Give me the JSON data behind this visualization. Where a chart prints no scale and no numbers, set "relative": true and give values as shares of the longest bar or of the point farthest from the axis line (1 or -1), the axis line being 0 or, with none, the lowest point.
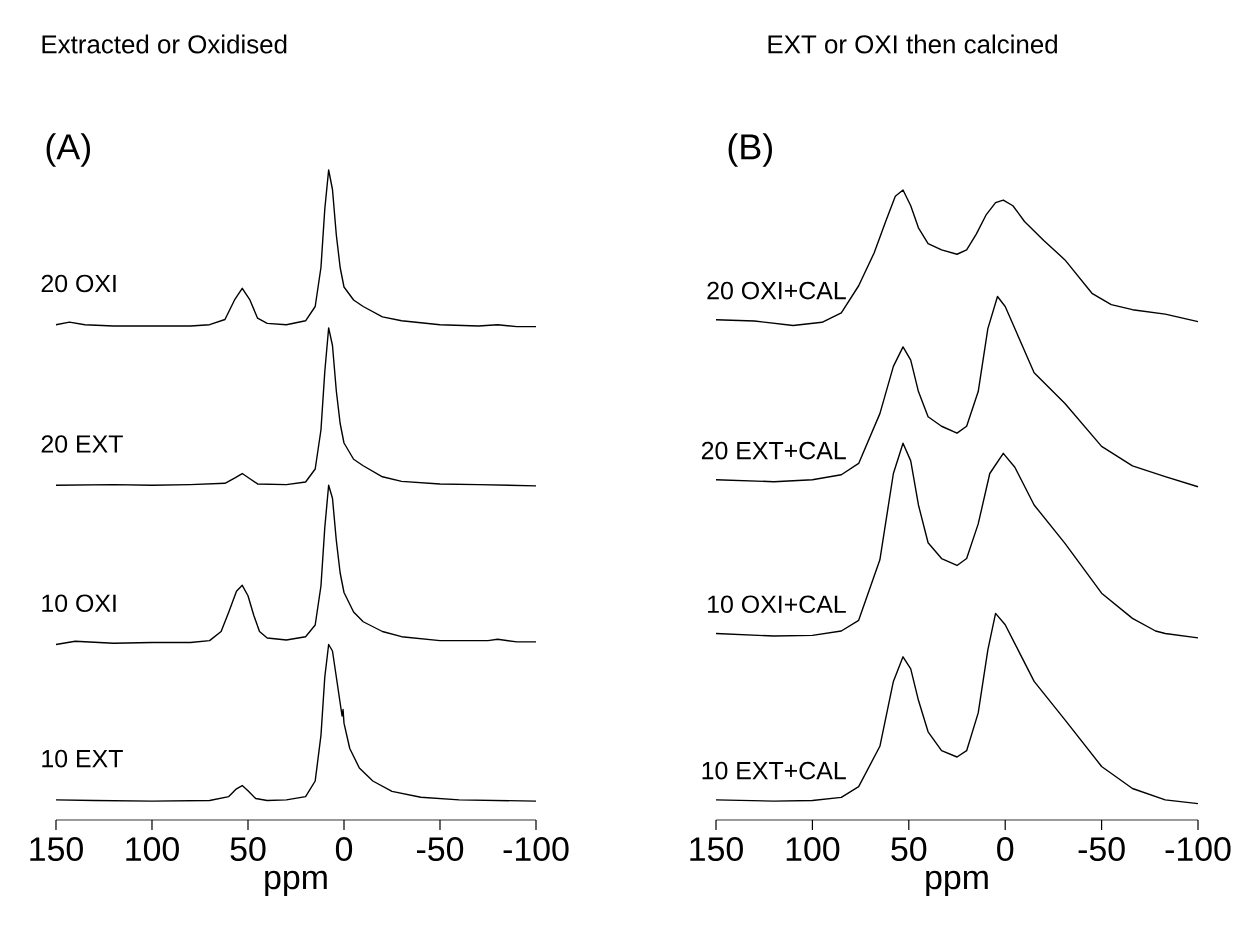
{
  "chart_data": [
    {
      "type": "line",
      "title": "Extracted or Oxidised",
      "subtitle": "(A)",
      "xlabel": "ppm",
      "xlim": [
        150,
        -100
      ],
      "xticks": [
        150,
        100,
        50,
        0,
        -50,
        -100
      ],
      "relative": true,
      "series": [
        {
          "name": "20 OXI",
          "color": "#000000",
          "x": [
            150,
            143,
            135,
            120,
            100,
            80,
            70,
            62,
            57,
            53,
            49,
            45,
            40,
            30,
            20,
            15,
            12,
            10,
            8,
            6,
            4,
            2,
            0,
            -5,
            -10,
            -20,
            -30,
            -50,
            -70,
            -80,
            -90,
            -100
          ],
          "values": [
            0.762,
            0.766,
            0.762,
            0.76,
            0.76,
            0.76,
            0.762,
            0.77,
            0.8,
            0.818,
            0.8,
            0.772,
            0.764,
            0.762,
            0.768,
            0.79,
            0.85,
            0.94,
            1.0,
            0.97,
            0.9,
            0.85,
            0.82,
            0.8,
            0.79,
            0.774,
            0.768,
            0.762,
            0.76,
            0.762,
            0.759,
            0.759
          ]
        },
        {
          "name": "20 EXT",
          "color": "#000000",
          "x": [
            150,
            120,
            100,
            80,
            62,
            57,
            53,
            49,
            45,
            30,
            20,
            15,
            12,
            10,
            8,
            6,
            4,
            2,
            0,
            -5,
            -10,
            -20,
            -30,
            -50,
            -70,
            -100
          ],
          "values": [
            0.515,
            0.516,
            0.515,
            0.516,
            0.518,
            0.526,
            0.533,
            0.525,
            0.517,
            0.516,
            0.52,
            0.54,
            0.6,
            0.69,
            0.757,
            0.73,
            0.66,
            0.61,
            0.58,
            0.555,
            0.545,
            0.528,
            0.521,
            0.517,
            0.516,
            0.514
          ]
        },
        {
          "name": "10 OXI",
          "color": "#000000",
          "x": [
            150,
            140,
            120,
            100,
            80,
            70,
            64,
            60,
            56,
            53,
            50,
            47,
            44,
            40,
            30,
            20,
            15,
            12,
            10,
            8,
            6,
            4,
            2,
            0,
            -5,
            -10,
            -20,
            -30,
            -50,
            -75,
            -80,
            -90,
            -100
          ],
          "values": [
            0.27,
            0.275,
            0.272,
            0.273,
            0.273,
            0.276,
            0.29,
            0.32,
            0.352,
            0.361,
            0.345,
            0.315,
            0.29,
            0.28,
            0.277,
            0.282,
            0.3,
            0.36,
            0.45,
            0.515,
            0.495,
            0.43,
            0.38,
            0.35,
            0.32,
            0.305,
            0.29,
            0.282,
            0.276,
            0.276,
            0.278,
            0.274,
            0.274
          ]
        },
        {
          "name": "10 EXT",
          "color": "#000000",
          "x": [
            150,
            130,
            100,
            70,
            60,
            56,
            53,
            50,
            46,
            40,
            30,
            20,
            15,
            12,
            10,
            8,
            6,
            4,
            2,
            1,
            0.5,
            0,
            -3,
            -8,
            -15,
            -25,
            -40,
            -60,
            -100
          ],
          "values": [
            0.031,
            0.03,
            0.029,
            0.03,
            0.036,
            0.048,
            0.053,
            0.045,
            0.033,
            0.03,
            0.031,
            0.036,
            0.06,
            0.13,
            0.22,
            0.27,
            0.26,
            0.22,
            0.18,
            0.16,
            0.17,
            0.149,
            0.11,
            0.08,
            0.06,
            0.044,
            0.035,
            0.031,
            0.029
          ]
        }
      ]
    },
    {
      "type": "line",
      "title": "EXT or OXI then calcined",
      "subtitle": "(B)",
      "xlabel": "ppm",
      "xlim": [
        150,
        -100
      ],
      "xticks": [
        150,
        100,
        50,
        0,
        -50,
        -100
      ],
      "relative": true,
      "series": [
        {
          "name": "20 OXI+CAL",
          "color": "#000000",
          "x": [
            150,
            130,
            110,
            95,
            85,
            76,
            68,
            62,
            57,
            53,
            49,
            45,
            40,
            33,
            25,
            20,
            15,
            10,
            5,
            1,
            -4,
            -10,
            -20,
            -31,
            -45,
            -55,
            -66,
            -83,
            -100
          ],
          "values": [
            0.794,
            0.792,
            0.785,
            0.79,
            0.805,
            0.848,
            0.9,
            0.95,
            0.99,
            1.0,
            0.975,
            0.94,
            0.915,
            0.905,
            0.898,
            0.905,
            0.93,
            0.96,
            0.98,
            0.984,
            0.975,
            0.95,
            0.92,
            0.889,
            0.836,
            0.818,
            0.81,
            0.803,
            0.791
          ]
        },
        {
          "name": "20 EXT+CAL",
          "color": "#000000",
          "x": [
            150,
            120,
            100,
            85,
            76,
            65,
            58,
            53,
            49,
            45,
            40,
            33,
            25,
            20,
            14,
            9,
            4,
            0,
            -5,
            -15,
            -31,
            -50,
            -66,
            -83,
            -100
          ],
          "values": [
            0.54,
            0.537,
            0.54,
            0.548,
            0.566,
            0.645,
            0.72,
            0.751,
            0.73,
            0.68,
            0.64,
            0.625,
            0.614,
            0.625,
            0.68,
            0.78,
            0.831,
            0.815,
            0.78,
            0.71,
            0.661,
            0.593,
            0.562,
            0.545,
            0.529
          ]
        },
        {
          "name": "10 OXI+CAL",
          "color": "#000000",
          "x": [
            150,
            120,
            100,
            85,
            76,
            65,
            58,
            53,
            49,
            45,
            40,
            33,
            25,
            20,
            14,
            8,
            1,
            -5,
            -15,
            -31,
            -50,
            -66,
            -78,
            -83,
            -100
          ],
          "values": [
            0.296,
            0.292,
            0.293,
            0.3,
            0.317,
            0.413,
            0.55,
            0.598,
            0.57,
            0.5,
            0.44,
            0.415,
            0.404,
            0.415,
            0.47,
            0.55,
            0.582,
            0.56,
            0.5,
            0.439,
            0.36,
            0.32,
            0.3,
            0.296,
            0.289
          ]
        },
        {
          "name": "10 EXT+CAL",
          "color": "#000000",
          "x": [
            150,
            120,
            100,
            85,
            76,
            65,
            58,
            53,
            49,
            45,
            40,
            33,
            25,
            20,
            14,
            9,
            5,
            0,
            -5,
            -15,
            -31,
            -50,
            -66,
            -83,
            -100
          ],
          "values": [
            0.032,
            0.03,
            0.031,
            0.036,
            0.053,
            0.117,
            0.22,
            0.259,
            0.24,
            0.19,
            0.14,
            0.11,
            0.1,
            0.11,
            0.17,
            0.27,
            0.328,
            0.31,
            0.28,
            0.22,
            0.159,
            0.085,
            0.05,
            0.032,
            0.026
          ]
        }
      ]
    }
  ]
}
